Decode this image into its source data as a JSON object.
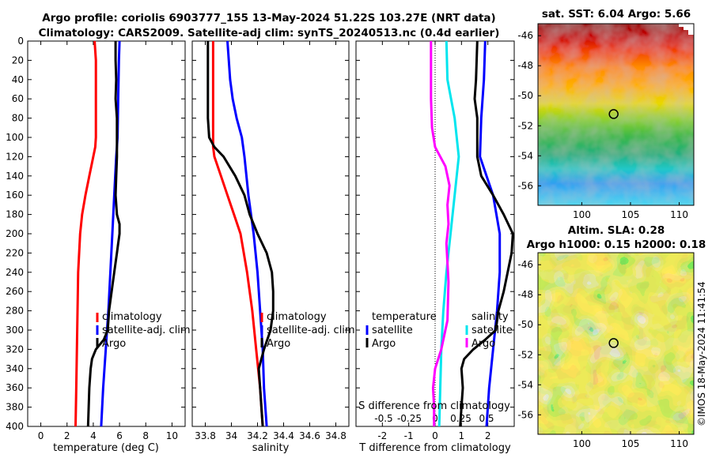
{
  "titles": {
    "line1": "Argo profile: coriolis 6903777_155 13-May-2024 51.22S 103.27E (NRT data)",
    "line2": "Climatology: CARS2009. Satellite-adj clim: synTS_20240513.nc (0.4d earlier)",
    "sst_map": "sat. SST: 6.04 Argo: 5.66",
    "sla_line1": "Altim. SLA: 0.28",
    "sla_line2": "Argo h1000: 0.15 h2000: 0.18",
    "stamp": "©IMOS 18-May-2024 11:41:54"
  },
  "colors": {
    "climatology": "#ff0000",
    "satellite": "#0000ff",
    "argo": "#000000",
    "temp_diff_satellite": "#0000ff",
    "temp_diff_argo": "#000000",
    "sal_diff_satellite": "#00e5ee",
    "sal_diff_argo": "#ff00ff"
  },
  "chart_data": [
    {
      "type": "line",
      "name": "temperature",
      "xlabel": "temperature (deg C)",
      "ylabel": "",
      "xlim": [
        -1,
        11
      ],
      "ylim": [
        400,
        0
      ],
      "xticks": [
        "0",
        "2",
        "4",
        "6",
        "8",
        "10"
      ],
      "xtick_values": [
        0,
        2,
        4,
        6,
        8,
        10
      ],
      "yticks": [
        "0",
        "20",
        "40",
        "60",
        "80",
        "100",
        "120",
        "140",
        "160",
        "180",
        "200",
        "220",
        "240",
        "260",
        "280",
        "300",
        "320",
        "340",
        "360",
        "380",
        "400"
      ],
      "ytick_values": [
        0,
        20,
        40,
        60,
        80,
        100,
        120,
        140,
        160,
        180,
        200,
        220,
        240,
        260,
        280,
        300,
        320,
        340,
        360,
        380,
        400
      ],
      "legend": [
        "climatology",
        "satellite-adj. clim",
        "Argo"
      ],
      "series": [
        {
          "name": "climatology",
          "color": "#ff0000",
          "depth": [
            0,
            20,
            60,
            100,
            110,
            120,
            140,
            160,
            180,
            200,
            240,
            280,
            320,
            360,
            400
          ],
          "values": [
            4.1,
            4.2,
            4.2,
            4.2,
            4.15,
            4.0,
            3.7,
            3.4,
            3.15,
            3.0,
            2.85,
            2.8,
            2.75,
            2.7,
            2.65
          ]
        },
        {
          "name": "satellite-adj. clim",
          "color": "#0000ff",
          "depth": [
            0,
            20,
            60,
            100,
            120,
            160,
            200,
            240,
            280,
            300,
            320,
            360,
            400
          ],
          "values": [
            6.0,
            5.95,
            5.9,
            5.85,
            5.75,
            5.6,
            5.45,
            5.3,
            5.15,
            5.05,
            4.95,
            4.75,
            4.6
          ]
        },
        {
          "name": "Argo",
          "color": "#000000",
          "depth": [
            0,
            20,
            40,
            60,
            80,
            100,
            120,
            140,
            160,
            180,
            190,
            200,
            210,
            220,
            240,
            260,
            280,
            300,
            310,
            320,
            330,
            340,
            360,
            380,
            400
          ],
          "values": [
            5.7,
            5.7,
            5.75,
            5.7,
            5.8,
            5.8,
            5.8,
            5.75,
            5.7,
            5.8,
            6.0,
            6.0,
            5.9,
            5.8,
            5.6,
            5.4,
            5.2,
            5.1,
            4.8,
            4.2,
            3.9,
            3.8,
            3.7,
            3.65,
            3.6
          ]
        }
      ]
    },
    {
      "type": "line",
      "name": "salinity",
      "xlabel": "salinity",
      "xlim": [
        33.7,
        34.9
      ],
      "ylim": [
        400,
        0
      ],
      "xticks": [
        "33.8",
        "34",
        "34.2",
        "34.4",
        "34.6",
        "34.8"
      ],
      "xtick_values": [
        33.8,
        34.0,
        34.2,
        34.4,
        34.6,
        34.8
      ],
      "legend": [
        "climatology",
        "satellite-adj. clim",
        "Argo"
      ],
      "series": [
        {
          "name": "climatology",
          "color": "#ff0000",
          "depth": [
            0,
            20,
            60,
            100,
            110,
            120,
            140,
            160,
            180,
            200,
            240,
            280,
            320,
            360,
            400
          ],
          "values": [
            33.86,
            33.86,
            33.86,
            33.86,
            33.86,
            33.87,
            33.92,
            33.97,
            34.02,
            34.07,
            34.12,
            34.16,
            34.19,
            34.22,
            34.24
          ]
        },
        {
          "name": "satellite-adj. clim",
          "color": "#0000ff",
          "depth": [
            0,
            20,
            40,
            60,
            80,
            100,
            120,
            160,
            200,
            240,
            280,
            320,
            360,
            400
          ],
          "values": [
            33.97,
            33.98,
            33.99,
            34.01,
            34.04,
            34.08,
            34.1,
            34.13,
            34.17,
            34.2,
            34.22,
            34.24,
            34.25,
            34.27
          ]
        },
        {
          "name": "Argo",
          "color": "#000000",
          "depth": [
            0,
            40,
            80,
            100,
            110,
            120,
            140,
            160,
            180,
            200,
            220,
            240,
            260,
            280,
            300,
            320,
            340,
            360,
            380,
            400
          ],
          "values": [
            33.82,
            33.82,
            33.82,
            33.83,
            33.87,
            33.94,
            34.03,
            34.1,
            34.14,
            34.2,
            34.27,
            34.31,
            34.32,
            34.32,
            34.3,
            34.25,
            34.21,
            34.22,
            34.23,
            34.24
          ]
        }
      ]
    },
    {
      "type": "line",
      "name": "difference",
      "xlabel": "T difference from climatology",
      "top_xlabel": "S difference from climatology",
      "xlim": [
        -3,
        3
      ],
      "ylim": [
        400,
        0
      ],
      "xticks": [
        "-2",
        "-1",
        "0",
        "1",
        "2"
      ],
      "xtick_values": [
        -2,
        -1,
        0,
        1,
        2
      ],
      "top_xticks": [
        "-0.5",
        "-0.25",
        "0",
        "0.25",
        "0.5"
      ],
      "top_xtick_values": [
        -0.5,
        -0.25,
        0,
        0.25,
        0.5
      ],
      "legend_left": {
        "header": "temperature",
        "items": [
          "satellite",
          "Argo"
        ]
      },
      "legend_right": {
        "header": "salinity",
        "items": [
          "satellite",
          "Argo"
        ]
      },
      "series": [
        {
          "name": "temperature satellite",
          "color": "#0000ff",
          "depth": [
            0,
            40,
            80,
            120,
            160,
            200,
            240,
            280,
            320,
            360,
            400
          ],
          "values": [
            1.9,
            1.85,
            1.75,
            1.7,
            2.2,
            2.45,
            2.45,
            2.35,
            2.2,
            2.05,
            1.95
          ]
        },
        {
          "name": "temperature Argo",
          "color": "#000000",
          "depth": [
            0,
            40,
            60,
            80,
            100,
            120,
            140,
            160,
            180,
            200,
            220,
            240,
            260,
            280,
            300,
            310,
            320,
            330,
            340,
            360,
            380,
            400
          ],
          "values": [
            1.6,
            1.55,
            1.5,
            1.6,
            1.6,
            1.6,
            1.75,
            2.2,
            2.6,
            2.95,
            2.9,
            2.75,
            2.6,
            2.4,
            2.3,
            1.9,
            1.45,
            1.1,
            1.0,
            1.05,
            1.0,
            0.95
          ]
        },
        {
          "name": "salinity satellite",
          "color": "#00e5ee",
          "depth": [
            0,
            40,
            80,
            120,
            160,
            180,
            200,
            240,
            280,
            320,
            360,
            400
          ],
          "values": [
            0.11,
            0.12,
            0.19,
            0.23,
            0.19,
            0.17,
            0.15,
            0.11,
            0.08,
            0.06,
            0.05,
            0.04
          ]
        },
        {
          "name": "salinity Argo",
          "color": "#ff00ff",
          "depth": [
            0,
            60,
            90,
            110,
            130,
            150,
            170,
            190,
            210,
            250,
            290,
            320,
            340,
            360,
            380,
            400
          ],
          "values": [
            -0.04,
            -0.04,
            -0.03,
            0.0,
            0.1,
            0.14,
            0.12,
            0.13,
            0.11,
            0.13,
            0.12,
            0.06,
            0.0,
            -0.02,
            -0.01,
            -0.01
          ]
        }
      ]
    },
    {
      "type": "heatmap",
      "name": "sst_map",
      "title": "sat. SST: 6.04 Argo: 5.66",
      "xticks": [
        "100",
        "105",
        "110"
      ],
      "xtick_values": [
        100,
        105,
        110
      ],
      "yticks": [
        "-46",
        "-48",
        "-50",
        "-52",
        "-54",
        "-56"
      ],
      "ytick_values": [
        -46,
        -48,
        -50,
        -52,
        -54,
        -56
      ],
      "xlim": [
        95.5,
        111.5
      ],
      "ylim": [
        -57.3,
        -45.2
      ],
      "marker": {
        "lon": 103.27,
        "lat": -51.22
      }
    },
    {
      "type": "heatmap",
      "name": "sla_map",
      "title": "Altim. SLA: 0.28 / Argo h1000: 0.15 h2000: 0.18",
      "xticks": [
        "100",
        "105",
        "110"
      ],
      "xtick_values": [
        100,
        105,
        110
      ],
      "yticks": [
        "-46",
        "-48",
        "-50",
        "-52",
        "-54",
        "-56"
      ],
      "ytick_values": [
        -46,
        -48,
        -50,
        -52,
        -54,
        -56
      ],
      "xlim": [
        95.5,
        111.5
      ],
      "ylim": [
        -57.3,
        -45.2
      ],
      "marker": {
        "lon": 103.27,
        "lat": -51.22
      }
    }
  ]
}
